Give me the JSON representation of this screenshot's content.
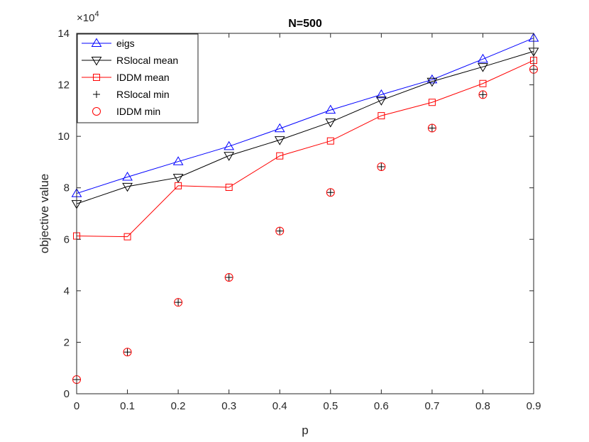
{
  "chart_data": {
    "type": "line",
    "title": "N=500",
    "xlabel": "p",
    "ylabel": "objective value",
    "y_exponent_label": "×10",
    "y_exponent_power": "4",
    "x": [
      0,
      0.1,
      0.2,
      0.3,
      0.4,
      0.5,
      0.6,
      0.7,
      0.8,
      0.9
    ],
    "xlim": [
      0,
      0.9
    ],
    "ylim": [
      0,
      14
    ],
    "x_ticks": [
      "0",
      "0.1",
      "0.2",
      "0.3",
      "0.4",
      "0.5",
      "0.6",
      "0.7",
      "0.8",
      "0.9"
    ],
    "y_ticks": [
      "0",
      "2",
      "4",
      "6",
      "8",
      "10",
      "12",
      "14"
    ],
    "grid": false,
    "legend_position": "top-left",
    "series": [
      {
        "name": "eigs",
        "color": "#0000ff",
        "marker": "triangle-up",
        "line": true,
        "values": [
          7.78,
          8.42,
          9.02,
          9.61,
          10.3,
          11.02,
          11.62,
          12.2,
          13.0,
          13.82
        ]
      },
      {
        "name": "RSlocal mean",
        "color": "#000000",
        "marker": "triangle-down",
        "line": true,
        "values": [
          7.38,
          8.05,
          8.4,
          9.25,
          9.86,
          10.55,
          11.4,
          12.13,
          12.7,
          13.3
        ]
      },
      {
        "name": "IDDM mean",
        "color": "#ff0000",
        "marker": "square",
        "line": true,
        "values": [
          6.13,
          6.1,
          8.08,
          8.02,
          9.24,
          9.82,
          10.8,
          11.32,
          12.05,
          12.95
        ]
      },
      {
        "name": "RSlocal min",
        "color": "#000000",
        "marker": "plus",
        "line": false,
        "values": [
          0.55,
          1.62,
          3.55,
          4.52,
          6.32,
          7.82,
          8.82,
          10.32,
          11.62,
          12.6
        ]
      },
      {
        "name": "IDDM min",
        "color": "#ff0000",
        "marker": "circle",
        "line": false,
        "values": [
          0.55,
          1.62,
          3.55,
          4.52,
          6.32,
          7.82,
          8.82,
          10.32,
          11.62,
          12.6
        ]
      }
    ]
  }
}
